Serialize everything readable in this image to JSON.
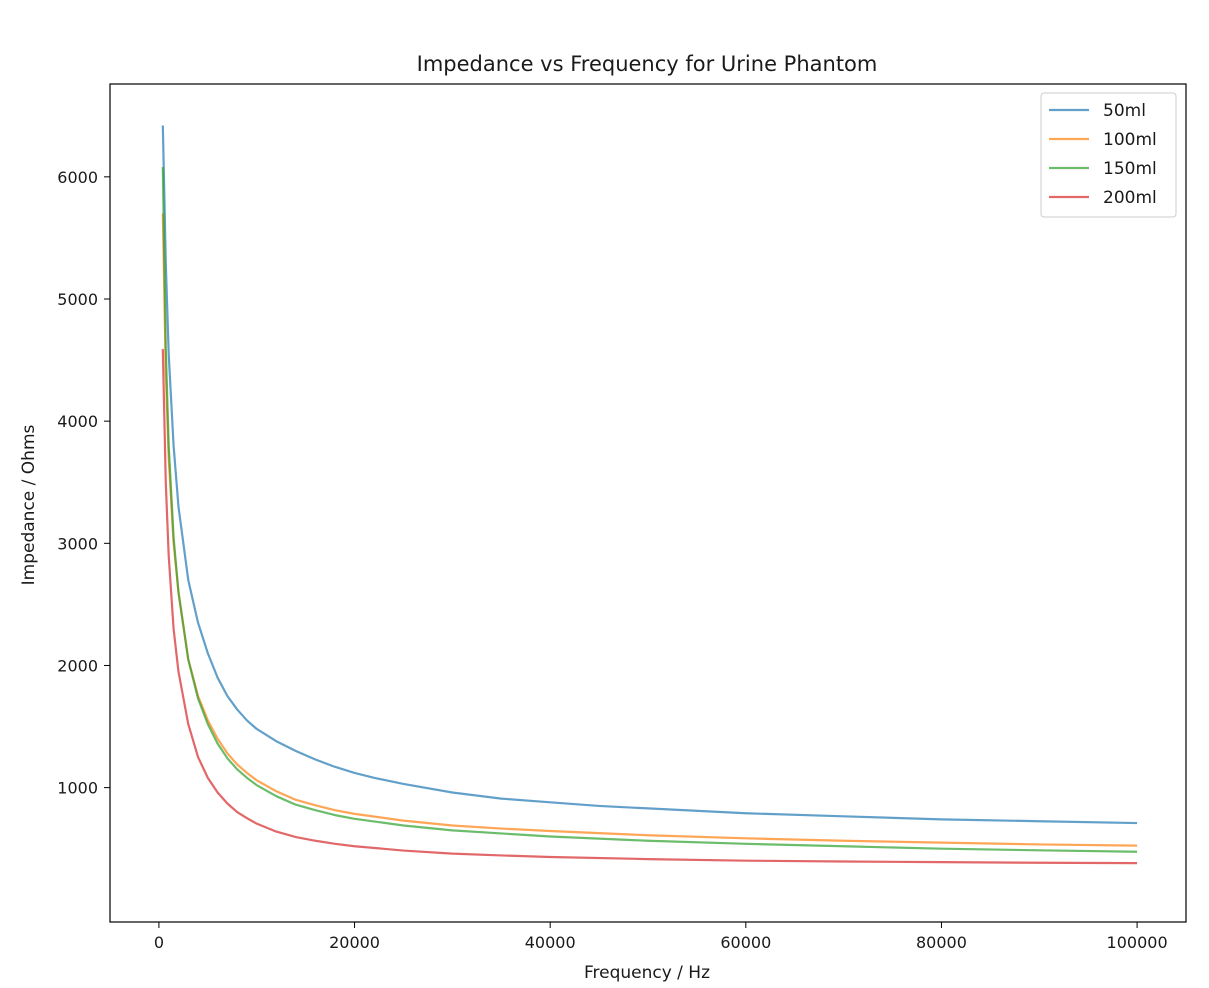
{
  "chart_data": {
    "type": "line",
    "title": "Impedance vs Frequency for Urine Phantom",
    "xlabel": "Frequency / Hz",
    "ylabel": "Impedance / Ohms",
    "xlim": [
      -5000,
      105000
    ],
    "ylim": [
      -100,
      6760
    ],
    "xticks": [
      0,
      20000,
      40000,
      60000,
      80000,
      100000
    ],
    "yticks": [
      1000,
      2000,
      3000,
      4000,
      5000,
      6000
    ],
    "grid": false,
    "legend": "top-right",
    "series": [
      {
        "name": "50ml",
        "color": "#1f77b4",
        "points": [
          [
            400,
            6420
          ],
          [
            700,
            5300
          ],
          [
            1000,
            4550
          ],
          [
            1500,
            3800
          ],
          [
            2000,
            3300
          ],
          [
            3000,
            2700
          ],
          [
            4000,
            2350
          ],
          [
            5000,
            2100
          ],
          [
            6000,
            1900
          ],
          [
            7000,
            1750
          ],
          [
            8000,
            1640
          ],
          [
            9000,
            1550
          ],
          [
            10000,
            1480
          ],
          [
            12000,
            1380
          ],
          [
            14000,
            1300
          ],
          [
            16000,
            1230
          ],
          [
            18000,
            1170
          ],
          [
            20000,
            1120
          ],
          [
            22000,
            1080
          ],
          [
            25000,
            1030
          ],
          [
            30000,
            960
          ],
          [
            35000,
            910
          ],
          [
            40000,
            880
          ],
          [
            45000,
            850
          ],
          [
            50000,
            830
          ],
          [
            60000,
            790
          ],
          [
            70000,
            765
          ],
          [
            80000,
            740
          ],
          [
            90000,
            725
          ],
          [
            100000,
            710
          ]
        ]
      },
      {
        "name": "100ml",
        "color": "#ff7f0e",
        "points": [
          [
            400,
            5700
          ],
          [
            700,
            4400
          ],
          [
            1000,
            3700
          ],
          [
            1500,
            3000
          ],
          [
            2000,
            2600
          ],
          [
            3000,
            2050
          ],
          [
            4000,
            1750
          ],
          [
            5000,
            1550
          ],
          [
            6000,
            1400
          ],
          [
            7000,
            1280
          ],
          [
            8000,
            1190
          ],
          [
            9000,
            1120
          ],
          [
            10000,
            1060
          ],
          [
            12000,
            970
          ],
          [
            14000,
            900
          ],
          [
            16000,
            855
          ],
          [
            18000,
            815
          ],
          [
            20000,
            785
          ],
          [
            25000,
            730
          ],
          [
            30000,
            690
          ],
          [
            35000,
            665
          ],
          [
            40000,
            645
          ],
          [
            50000,
            610
          ],
          [
            60000,
            585
          ],
          [
            70000,
            565
          ],
          [
            80000,
            550
          ],
          [
            90000,
            535
          ],
          [
            100000,
            525
          ]
        ]
      },
      {
        "name": "150ml",
        "color": "#2ca02c",
        "points": [
          [
            400,
            6080
          ],
          [
            700,
            4600
          ],
          [
            1000,
            3800
          ],
          [
            1500,
            3050
          ],
          [
            2000,
            2600
          ],
          [
            3000,
            2050
          ],
          [
            4000,
            1730
          ],
          [
            5000,
            1520
          ],
          [
            6000,
            1360
          ],
          [
            7000,
            1240
          ],
          [
            8000,
            1150
          ],
          [
            9000,
            1080
          ],
          [
            10000,
            1020
          ],
          [
            12000,
            930
          ],
          [
            14000,
            860
          ],
          [
            16000,
            815
          ],
          [
            18000,
            775
          ],
          [
            20000,
            745
          ],
          [
            25000,
            690
          ],
          [
            30000,
            650
          ],
          [
            35000,
            625
          ],
          [
            40000,
            600
          ],
          [
            50000,
            565
          ],
          [
            60000,
            540
          ],
          [
            70000,
            520
          ],
          [
            80000,
            500
          ],
          [
            90000,
            487
          ],
          [
            100000,
            475
          ]
        ]
      },
      {
        "name": "200ml",
        "color": "#d62728",
        "points": [
          [
            400,
            4590
          ],
          [
            700,
            3500
          ],
          [
            1000,
            2900
          ],
          [
            1500,
            2300
          ],
          [
            2000,
            1950
          ],
          [
            3000,
            1520
          ],
          [
            4000,
            1250
          ],
          [
            5000,
            1080
          ],
          [
            6000,
            960
          ],
          [
            7000,
            870
          ],
          [
            8000,
            800
          ],
          [
            9000,
            750
          ],
          [
            10000,
            705
          ],
          [
            12000,
            640
          ],
          [
            14000,
            595
          ],
          [
            16000,
            565
          ],
          [
            18000,
            540
          ],
          [
            20000,
            520
          ],
          [
            25000,
            485
          ],
          [
            30000,
            460
          ],
          [
            35000,
            445
          ],
          [
            40000,
            432
          ],
          [
            50000,
            415
          ],
          [
            60000,
            402
          ],
          [
            70000,
            395
          ],
          [
            80000,
            390
          ],
          [
            90000,
            385
          ],
          [
            100000,
            382
          ]
        ]
      }
    ]
  }
}
